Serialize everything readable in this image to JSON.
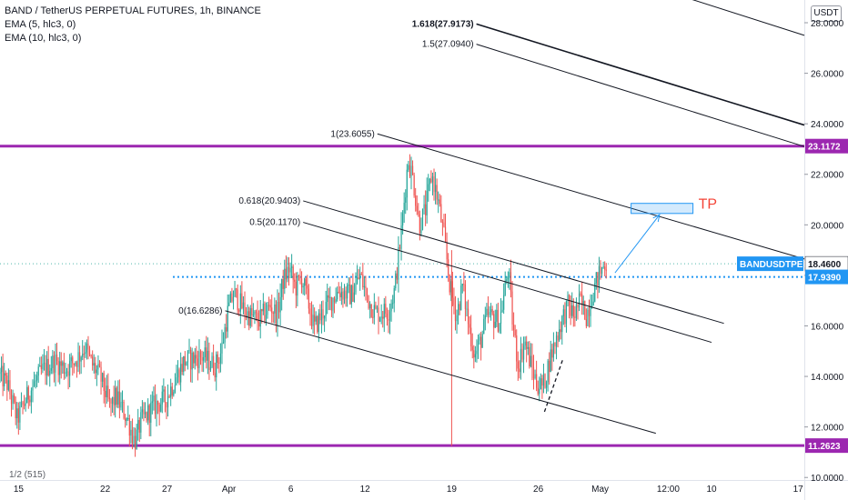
{
  "legend": {
    "title": "BAND / TetherUS PERPETUAL FUTURES, 1h, BINANCE",
    "ema1": "EMA (5, hlc3, 0)",
    "ema2": "EMA (10, hlc3, 0)"
  },
  "axis_unit": "USDT",
  "colors": {
    "background": "#ffffff",
    "up": "#26a69a",
    "down": "#ef5350",
    "horizontal_level": "#9c27b0",
    "symbol_tag": "#2196f3",
    "ema_tag": "#2196f3",
    "tp_box": "#2196f3",
    "tp_label": "#f44336",
    "fib_line": "#131722"
  },
  "chart_data": {
    "type": "candlestick",
    "symbol": "BANDUSDTPERP",
    "interval": "1h",
    "ylim": [
      9.9,
      28.9
    ],
    "y_ticks": [
      {
        "value": 10,
        "label": "10.0000"
      },
      {
        "value": 12,
        "label": "12.0000"
      },
      {
        "value": 14,
        "label": "14.0000"
      },
      {
        "value": 16,
        "label": "16.0000"
      },
      {
        "value": 18,
        "label": "18.0000"
      },
      {
        "value": 20,
        "label": "20.0000"
      },
      {
        "value": 22,
        "label": "22.0000"
      },
      {
        "value": 24,
        "label": "24.0000"
      },
      {
        "value": 26,
        "label": "26.0000"
      },
      {
        "value": 28,
        "label": "28.0000"
      }
    ],
    "x_ticks": [
      {
        "t": 15,
        "label": "15"
      },
      {
        "t": 22,
        "label": "22"
      },
      {
        "t": 27,
        "label": "27"
      },
      {
        "t": 32,
        "label": "Apr"
      },
      {
        "t": 37,
        "label": "6"
      },
      {
        "t": 43,
        "label": "12"
      },
      {
        "t": 50,
        "label": "19"
      },
      {
        "t": 57,
        "label": "26"
      },
      {
        "t": 62,
        "label": "May"
      },
      {
        "t": 67.5,
        "label": "12:00"
      },
      {
        "t": 71,
        "label": "10"
      },
      {
        "t": 78,
        "label": "17"
      }
    ],
    "x_range": [
      13.5,
      78.5
    ],
    "price_keypoints": [
      [
        13.5,
        14.1
      ],
      [
        14.2,
        13.7
      ],
      [
        15.0,
        12.3
      ],
      [
        16.0,
        13.4
      ],
      [
        17.0,
        14.2
      ],
      [
        18.0,
        14.6
      ],
      [
        19.0,
        14.3
      ],
      [
        20.0,
        14.8
      ],
      [
        20.5,
        15.2
      ],
      [
        21.0,
        14.5
      ],
      [
        21.7,
        14.0
      ],
      [
        22.5,
        12.8
      ],
      [
        23.0,
        13.2
      ],
      [
        24.0,
        12.2
      ],
      [
        24.5,
        11.4
      ],
      [
        25.0,
        12.2
      ],
      [
        26.0,
        12.8
      ],
      [
        27.0,
        13.1
      ],
      [
        27.5,
        13.6
      ],
      [
        28.5,
        14.6
      ],
      [
        30.0,
        14.8
      ],
      [
        31.0,
        14.4
      ],
      [
        31.5,
        15.0
      ],
      [
        32.0,
        16.5
      ],
      [
        32.5,
        17.3
      ],
      [
        33.5,
        16.5
      ],
      [
        34.5,
        16.2
      ],
      [
        35.5,
        16.8
      ],
      [
        36.0,
        16.4
      ],
      [
        36.5,
        17.8
      ],
      [
        37.0,
        18.3
      ],
      [
        37.5,
        17.5
      ],
      [
        38.0,
        17.9
      ],
      [
        38.5,
        17.0
      ],
      [
        39.0,
        15.9
      ],
      [
        40.0,
        16.8
      ],
      [
        41.0,
        17.4
      ],
      [
        42.0,
        17.2
      ],
      [
        42.7,
        18.0
      ],
      [
        43.5,
        16.9
      ],
      [
        44.0,
        16.5
      ],
      [
        45.0,
        16.6
      ],
      [
        45.5,
        17.4
      ],
      [
        46.0,
        19.5
      ],
      [
        46.6,
        22.6
      ],
      [
        47.0,
        21.8
      ],
      [
        47.5,
        20.0
      ],
      [
        48.0,
        20.6
      ],
      [
        48.5,
        22.0
      ],
      [
        49.0,
        21.0
      ],
      [
        49.5,
        19.5
      ],
      [
        50.0,
        17.5
      ],
      [
        50.5,
        16.4
      ],
      [
        51.0,
        17.6
      ],
      [
        51.5,
        16.0
      ],
      [
        52.0,
        14.8
      ],
      [
        52.5,
        15.5
      ],
      [
        53.0,
        16.4
      ],
      [
        54.0,
        16.2
      ],
      [
        54.7,
        18.3
      ],
      [
        55.0,
        16.3
      ],
      [
        55.5,
        14.4
      ],
      [
        56.0,
        15.4
      ],
      [
        56.5,
        14.5
      ],
      [
        57.0,
        13.7
      ],
      [
        57.5,
        13.6
      ],
      [
        58.0,
        14.6
      ],
      [
        58.5,
        15.4
      ],
      [
        59.0,
        16.2
      ],
      [
        59.5,
        16.8
      ],
      [
        60.0,
        16.4
      ],
      [
        60.5,
        17.0
      ],
      [
        61.0,
        16.4
      ],
      [
        61.5,
        17.3
      ],
      [
        62.0,
        18.0
      ],
      [
        62.5,
        18.5
      ]
    ],
    "horizontal_levels": [
      {
        "price": 23.1172,
        "label": "23.1172"
      },
      {
        "price": 11.2623,
        "label": "11.2623"
      }
    ],
    "current_price": {
      "price": 18.46,
      "label": "18.4600",
      "symbol_label": "BANDUSDTPERP"
    },
    "ema_price": {
      "price": 17.939,
      "label": "17.9390"
    },
    "fib_channel": {
      "levels": [
        {
          "label": "1.618(27.9173)",
          "bold": true,
          "x1": 52.0,
          "p1": 27.95,
          "x2": 78.5,
          "p2": 23.95
        },
        {
          "label": "1.5(27.0940)",
          "bold": false,
          "x1": 52.0,
          "p1": 27.15,
          "x2": 78.5,
          "p2": 23.1
        },
        {
          "label": "1(23.6055)",
          "bold": false,
          "x1": 44.0,
          "p1": 23.6,
          "x2": 78.5,
          "p2": 18.65
        },
        {
          "label": "0.618(20.9403)",
          "bold": false,
          "x1": 38.0,
          "p1": 20.95,
          "x2": 72.0,
          "p2": 16.1
        },
        {
          "label": "0.5(20.1170)",
          "bold": false,
          "x1": 38.0,
          "p1": 20.1,
          "x2": 71.0,
          "p2": 15.35
        },
        {
          "label": "0(16.6286)",
          "bold": false,
          "x1": 31.7,
          "p1": 16.6,
          "x2": 66.5,
          "p2": 11.75
        }
      ],
      "top_line": {
        "x1": 67.0,
        "p1": 29.3,
        "x2": 78.5,
        "p2": 27.5
      }
    },
    "annotations": {
      "tp_label": "TP",
      "tp_box": {
        "t1": 64.5,
        "p1": 20.85,
        "t2": 69.5,
        "p2": 20.45
      },
      "tp_arrow": {
        "t1": 63.2,
        "p1": 18.1,
        "t2": 66.8,
        "p2": 20.4
      },
      "dashed_line": {
        "t1": 57.5,
        "p1": 12.6,
        "t2": 59.0,
        "p2": 14.7
      },
      "vertical_line": {
        "t": 50.0,
        "p1": 11.25,
        "p2": 19.0
      }
    },
    "bottom_partial_label": "1/2 (515)"
  }
}
